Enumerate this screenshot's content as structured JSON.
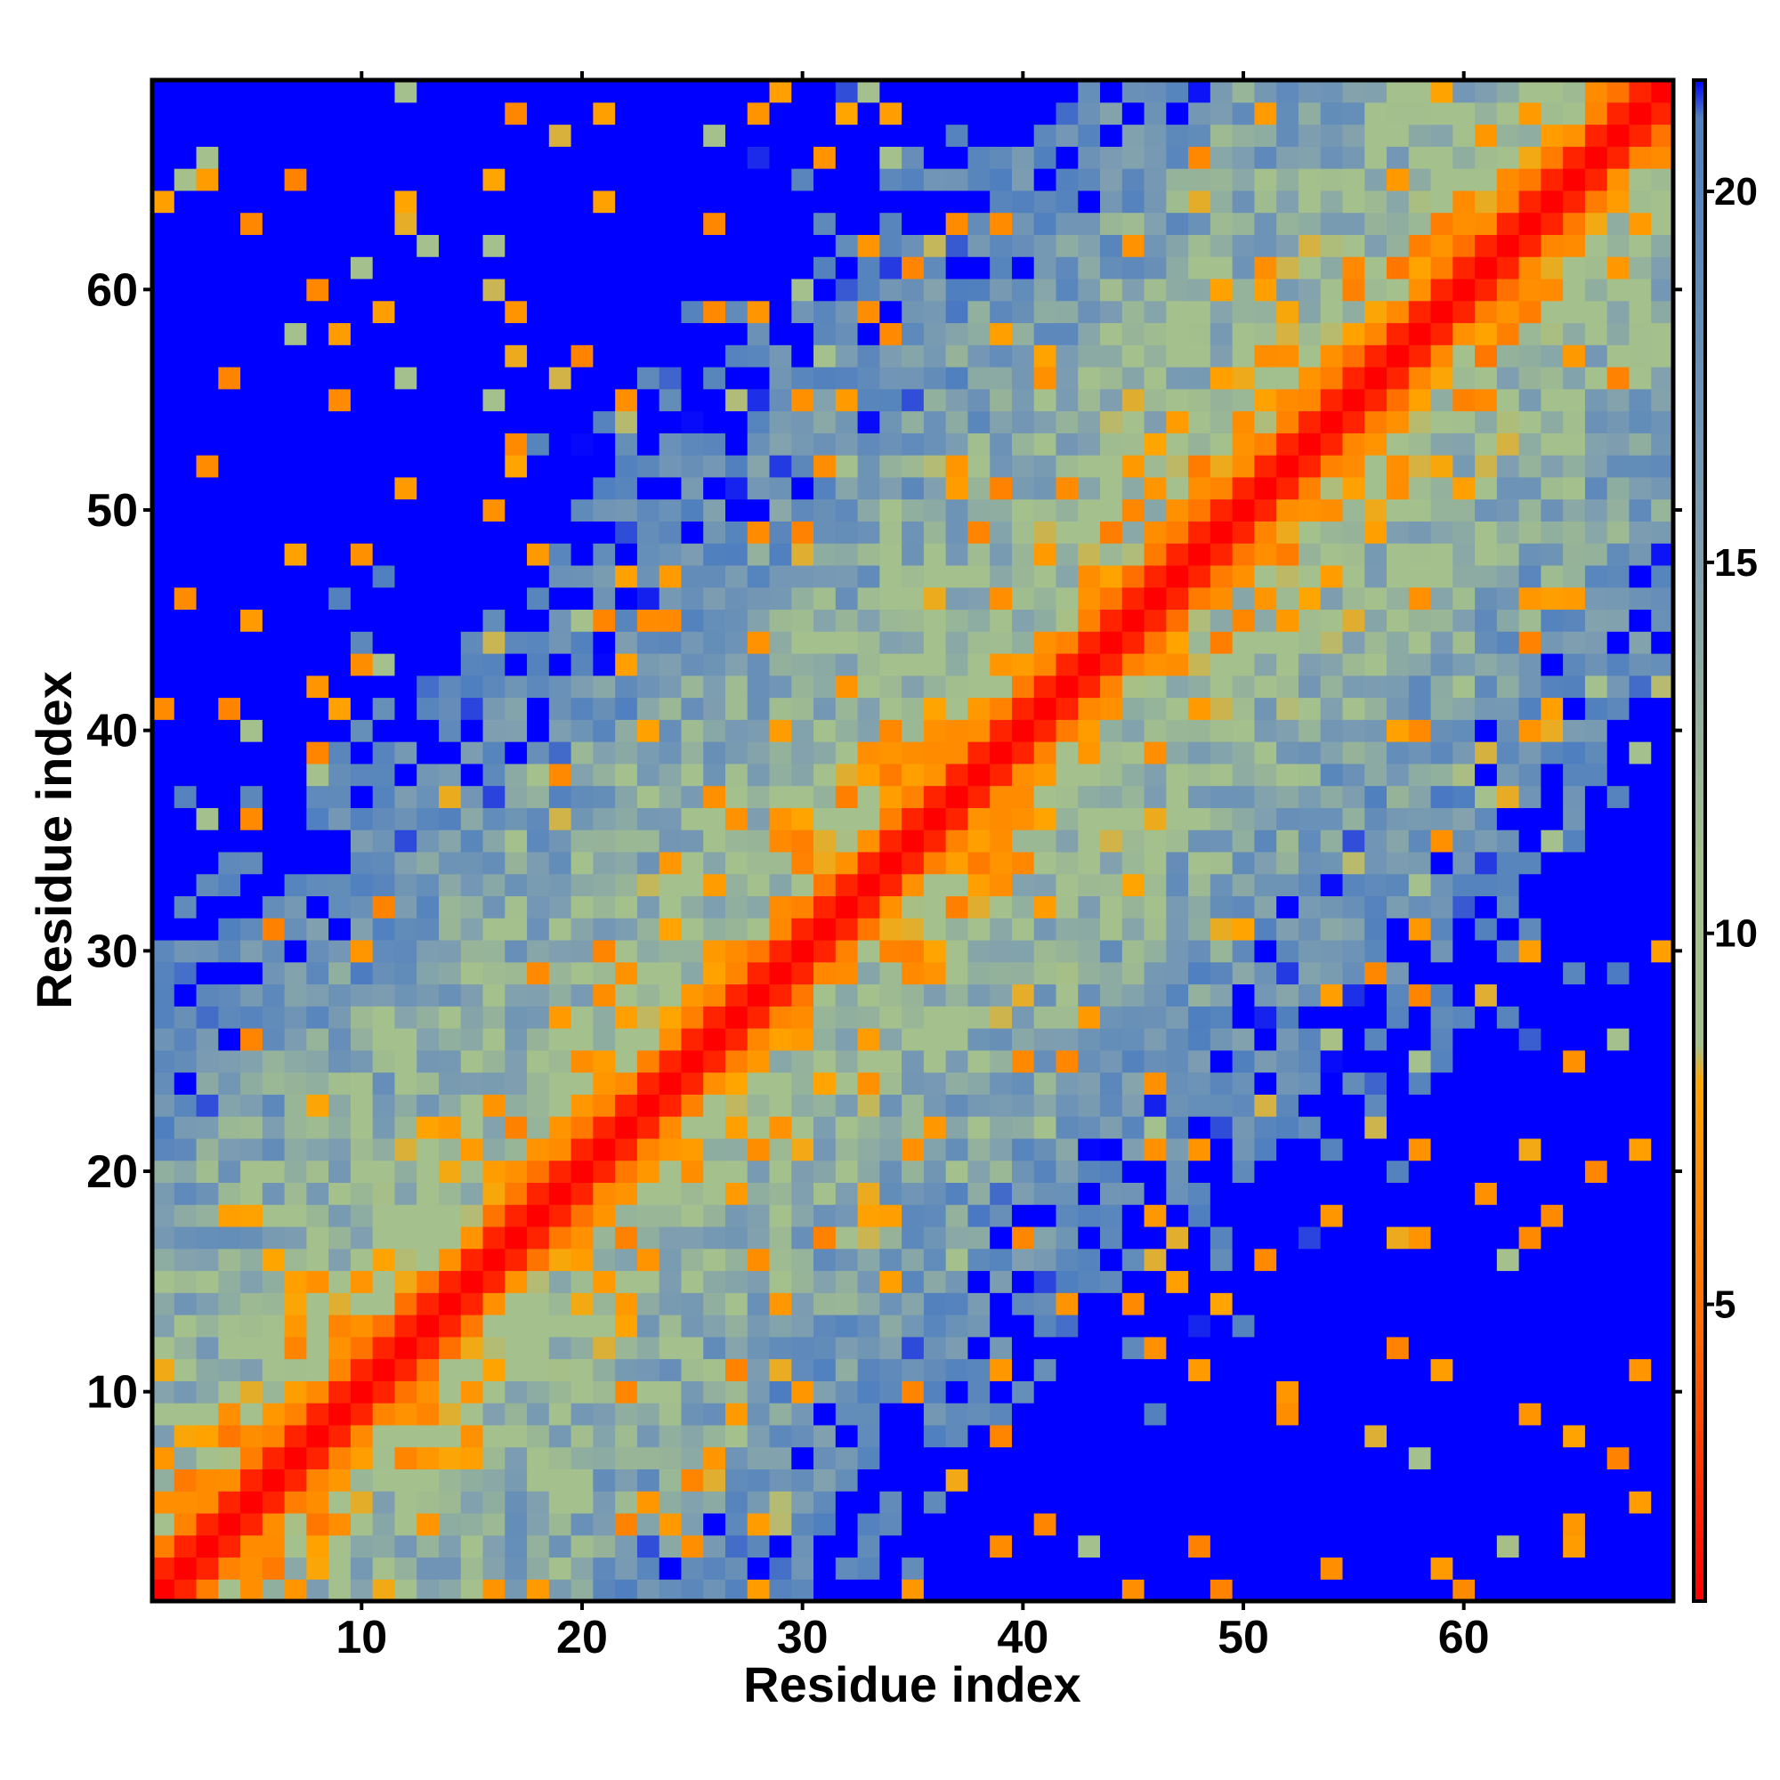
{
  "chart_data": {
    "type": "heatmap",
    "title": "",
    "xlabel": "Residue index",
    "ylabel": "Residue index",
    "n_residues": 69,
    "xlim": [
      1,
      69
    ],
    "ylim": [
      1,
      69
    ],
    "x_ticks": [
      10,
      20,
      30,
      40,
      50,
      60
    ],
    "y_ticks": [
      10,
      20,
      30,
      40,
      50,
      60
    ],
    "colorbar": {
      "range": [
        1,
        21.5
      ],
      "ticks": [
        5,
        10,
        15,
        20
      ],
      "stops": [
        {
          "value": 1,
          "color": "#ff0000"
        },
        {
          "value": 4.5,
          "color": "#ff6600"
        },
        {
          "value": 8,
          "color": "#ffa500"
        },
        {
          "value": 8.5,
          "color": "#a4c08c"
        },
        {
          "value": 11,
          "color": "#a4c08c"
        },
        {
          "value": 15,
          "color": "#7f9fb0"
        },
        {
          "value": 21,
          "color": "#4f7fbf"
        },
        {
          "value": 21.5,
          "color": "#0000ff"
        }
      ]
    },
    "symmetric": true,
    "grid": false
  }
}
